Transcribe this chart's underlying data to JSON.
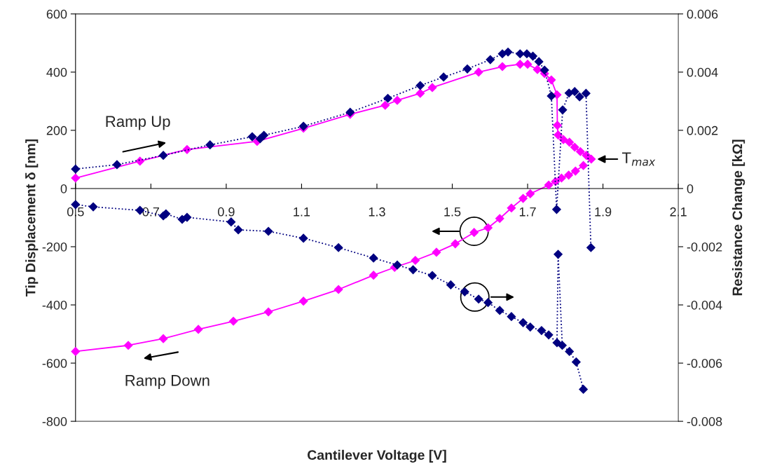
{
  "chart_data": {
    "type": "line",
    "xlabel": "Cantilever Voltage [V]",
    "ylabel": "Tip Displacement δ [nm]",
    "y2label": "Resistance Change [kΩ]",
    "xlim": [
      0.5,
      2.1
    ],
    "xticks": [
      0.5,
      0.7,
      0.9,
      1.1,
      1.3,
      1.5,
      1.7,
      1.9,
      2.1
    ],
    "ylim": [
      -800,
      600
    ],
    "yticks": [
      -800,
      -600,
      -400,
      -200,
      0,
      200,
      400,
      600
    ],
    "y2lim": [
      -0.008,
      0.006
    ],
    "y2ticks": [
      -0.008,
      -0.006,
      -0.004,
      -0.002,
      0,
      0.002,
      0.004,
      0.006
    ],
    "series": [
      {
        "color": "#ff00ff",
        "marker": "diamond",
        "line_style": "solid",
        "x": [
          0.5,
          0.671,
          0.796,
          0.982,
          1.105,
          1.229,
          1.322,
          1.354,
          1.415,
          1.447,
          1.57,
          1.633,
          1.68,
          1.7,
          1.726,
          1.745,
          1.763,
          1.778,
          1.779,
          1.781,
          1.795,
          1.811,
          1.825,
          1.84,
          1.856,
          1.869
        ],
        "values": [
          36,
          94,
          134,
          162,
          207,
          255,
          286,
          303,
          327,
          347,
          400,
          419,
          427,
          427,
          409,
          395,
          373,
          322,
          217,
          184,
          168,
          159,
          142,
          127,
          114,
          101
        ]
      },
      {
        "color": "#ff00ff",
        "marker": "diamond",
        "line_style": "solid",
        "x": [
          1.848,
          1.827,
          1.809,
          1.79,
          1.774,
          1.756,
          1.707,
          1.688,
          1.657,
          1.626,
          1.595,
          1.558,
          1.508,
          1.458,
          1.402,
          1.347,
          1.291,
          1.198,
          1.105,
          1.012,
          0.919,
          0.826,
          0.733,
          0.64,
          0.5
        ],
        "values": [
          79,
          60,
          46,
          36,
          24,
          12,
          -18,
          -34,
          -67,
          -103,
          -135,
          -151,
          -190,
          -219,
          -247,
          -271,
          -298,
          -347,
          -387,
          -424,
          -456,
          -484,
          -516,
          -539,
          -560
        ]
      },
      {
        "color": "#000080",
        "marker": "diamond",
        "line_style": "dotted",
        "axis": "y2",
        "x": [
          0.5,
          0.61,
          0.733,
          0.857,
          0.969,
          0.99,
          1.0,
          1.105,
          1.229,
          1.329,
          1.415,
          1.477,
          1.54,
          1.601,
          1.633,
          1.648,
          1.68,
          1.698,
          1.714,
          1.73,
          1.745,
          1.763,
          1.777,
          1.793,
          1.81,
          1.825,
          1.838,
          1.855,
          1.868
        ],
        "values": [
          0.00067,
          0.00082,
          0.00114,
          0.0015,
          0.00178,
          0.00171,
          0.00183,
          0.00214,
          0.00262,
          0.0031,
          0.00354,
          0.00383,
          0.00411,
          0.00443,
          0.00463,
          0.00469,
          0.00463,
          0.00463,
          0.00455,
          0.00436,
          0.00407,
          0.00318,
          -0.00072,
          0.0027,
          0.00328,
          0.00333,
          0.00315,
          0.00327,
          -0.00203
        ]
      },
      {
        "color": "#000080",
        "marker": "diamond",
        "line_style": "dotted",
        "axis": "y2",
        "x": [
          1.848,
          1.829,
          1.811,
          1.792,
          1.781,
          1.778,
          1.756,
          1.737,
          1.707,
          1.688,
          1.657,
          1.626,
          1.595,
          1.57,
          1.533,
          1.496,
          1.447,
          1.396,
          1.354,
          1.291,
          1.198,
          1.105,
          1.012,
          0.932,
          0.913,
          0.796,
          0.783,
          0.74,
          0.733,
          0.671,
          0.547,
          0.5
        ],
        "values": [
          -0.0069,
          -0.00596,
          -0.0056,
          -0.00539,
          -0.00226,
          -0.0053,
          -0.00503,
          -0.00488,
          -0.00476,
          -0.00461,
          -0.0044,
          -0.00419,
          -0.00392,
          -0.0038,
          -0.00355,
          -0.00331,
          -0.00299,
          -0.00279,
          -0.00263,
          -0.00239,
          -0.00203,
          -0.00171,
          -0.00147,
          -0.00142,
          -0.00115,
          -0.00099,
          -0.00106,
          -0.00087,
          -0.00094,
          -0.00075,
          -0.00063,
          -0.00055
        ]
      }
    ],
    "annotations": [
      "Ramp Up",
      "Ramp Down",
      {
        "text": "T$_{max}$",
        "x": 1.869,
        "y": 101
      }
    ]
  }
}
